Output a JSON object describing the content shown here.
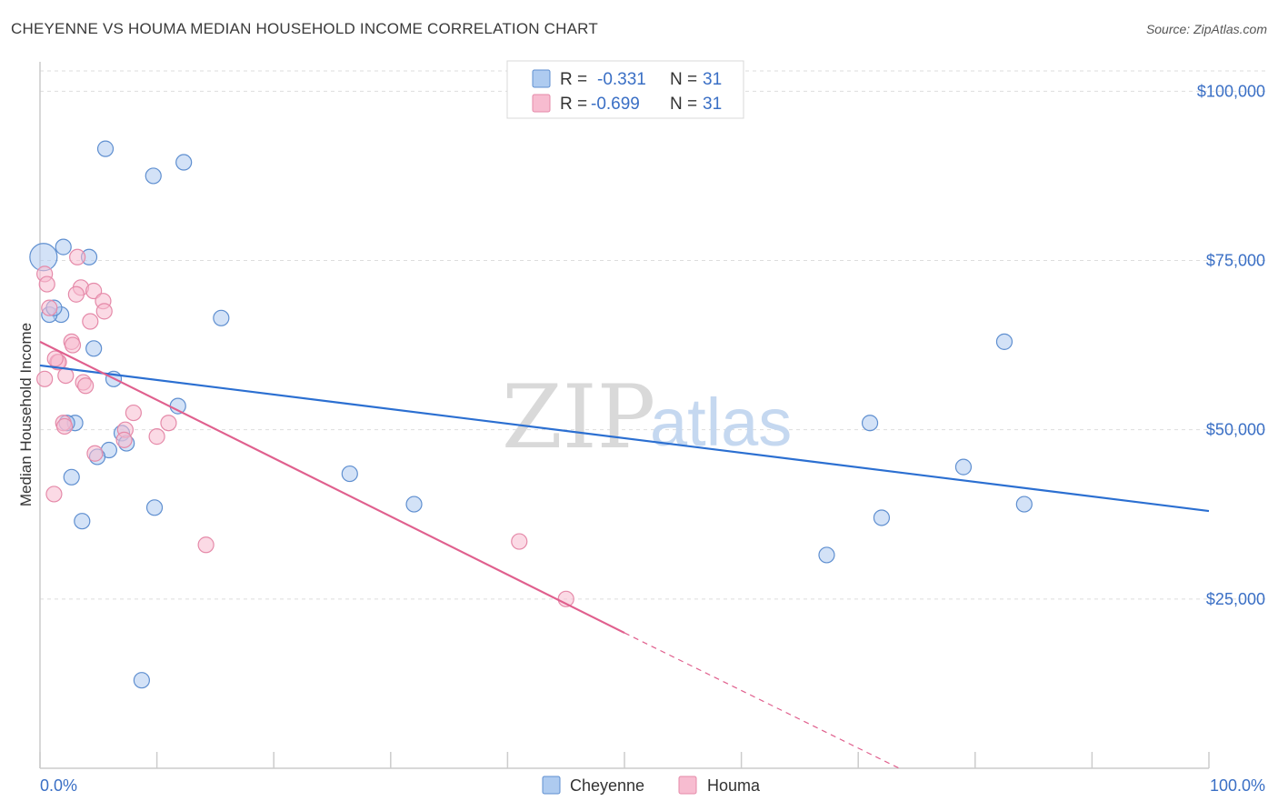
{
  "title": "CHEYENNE VS HOUMA MEDIAN HOUSEHOLD INCOME CORRELATION CHART",
  "source": "Source: ZipAtlas.com",
  "colors": {
    "cheyenne_fill": "#aecbf0",
    "cheyenne_stroke": "#5f8fd0",
    "cheyenne_line": "#2b6fd1",
    "houma_fill": "#f7bcd0",
    "houma_stroke": "#e58aa9",
    "houma_line": "#e0608e",
    "label_blue": "#3a6fc5"
  },
  "legend": {
    "rows": [
      {
        "r_label": "R = ",
        "r_value": "-0.331",
        "n_label": "N = ",
        "n_value": "31"
      },
      {
        "r_label": "R = ",
        "r_value": "-0.699",
        "n_label": "N = ",
        "n_value": "31"
      }
    ]
  },
  "watermark": {
    "zip": "ZIP",
    "atlas": "atlas"
  },
  "chart_data": {
    "type": "scatter",
    "xlabel": "",
    "ylabel": "Median Household Income",
    "xlim": [
      0,
      100
    ],
    "ylim": [
      0,
      103000
    ],
    "x_tick_labels": [
      "0.0%",
      "100.0%"
    ],
    "y_ticks": [
      25000,
      50000,
      75000,
      100000
    ],
    "y_tick_labels": [
      "$25,000",
      "$50,000",
      "$75,000",
      "$100,000"
    ],
    "grid": true,
    "series": [
      {
        "name": "Cheyenne",
        "points": [
          [
            0.3,
            75500
          ],
          [
            2.0,
            77000
          ],
          [
            4.2,
            75500
          ],
          [
            1.8,
            67000
          ],
          [
            0.8,
            67000
          ],
          [
            1.2,
            68000
          ],
          [
            5.6,
            91500
          ],
          [
            9.7,
            87500
          ],
          [
            12.3,
            89500
          ],
          [
            15.5,
            66500
          ],
          [
            4.6,
            62000
          ],
          [
            6.3,
            57500
          ],
          [
            3.0,
            51000
          ],
          [
            2.3,
            51000
          ],
          [
            7.0,
            49500
          ],
          [
            7.4,
            48000
          ],
          [
            5.9,
            47000
          ],
          [
            4.9,
            46000
          ],
          [
            11.8,
            53500
          ],
          [
            2.7,
            43000
          ],
          [
            3.6,
            36500
          ],
          [
            9.8,
            38500
          ],
          [
            26.5,
            43500
          ],
          [
            32.0,
            39000
          ],
          [
            8.7,
            13000
          ],
          [
            82.5,
            63000
          ],
          [
            71.0,
            51000
          ],
          [
            79.0,
            44500
          ],
          [
            84.2,
            39000
          ],
          [
            72.0,
            37000
          ],
          [
            67.3,
            31500
          ]
        ],
        "trend": {
          "x": [
            0,
            100
          ],
          "y": [
            59500,
            38000
          ]
        }
      },
      {
        "name": "Houma",
        "points": [
          [
            0.4,
            73000
          ],
          [
            0.6,
            71500
          ],
          [
            3.2,
            75500
          ],
          [
            3.5,
            71000
          ],
          [
            3.1,
            70000
          ],
          [
            4.6,
            70500
          ],
          [
            5.4,
            69000
          ],
          [
            5.5,
            67500
          ],
          [
            0.8,
            68000
          ],
          [
            4.3,
            66000
          ],
          [
            2.7,
            63000
          ],
          [
            2.8,
            62500
          ],
          [
            1.5,
            60000
          ],
          [
            1.6,
            60000
          ],
          [
            2.2,
            58000
          ],
          [
            0.4,
            57500
          ],
          [
            3.7,
            57000
          ],
          [
            3.9,
            56500
          ],
          [
            2.0,
            51000
          ],
          [
            2.1,
            50500
          ],
          [
            8.0,
            52500
          ],
          [
            7.3,
            50000
          ],
          [
            11.0,
            51000
          ],
          [
            10.0,
            49000
          ],
          [
            7.2,
            48500
          ],
          [
            4.7,
            46500
          ],
          [
            1.2,
            40500
          ],
          [
            14.2,
            33000
          ],
          [
            41.0,
            33500
          ],
          [
            45.0,
            25000
          ],
          [
            1.3,
            60500
          ]
        ],
        "trend": {
          "x": [
            0,
            50
          ],
          "y": [
            63000,
            20000
          ]
        },
        "trend_extension": {
          "x": [
            50,
            73.5
          ],
          "y": [
            20000,
            0
          ]
        }
      }
    ]
  },
  "bottom_legend": [
    {
      "label": "Cheyenne"
    },
    {
      "label": "Houma"
    }
  ]
}
